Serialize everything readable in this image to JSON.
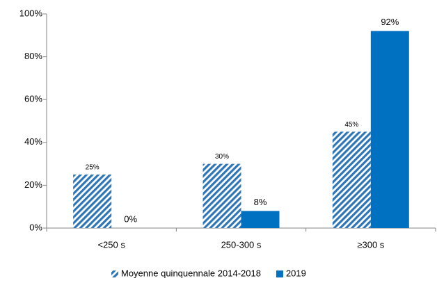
{
  "chart_data": {
    "type": "bar",
    "categories": [
      "<250 s",
      "250-300 s",
      "≥300 s"
    ],
    "series": [
      {
        "name": "Moyenne quinquennale 2014-2018",
        "color": "#2e75b6",
        "pattern": "hatch",
        "values": [
          25,
          30,
          45
        ],
        "value_labels": [
          "25%",
          "30%",
          "45%"
        ]
      },
      {
        "name": "2019",
        "color": "#0070c0",
        "values": [
          0,
          8,
          92
        ],
        "value_labels": [
          "0%",
          "8%",
          "92%"
        ]
      }
    ],
    "ylim": [
      0,
      100
    ],
    "yticks": [
      {
        "value": 0,
        "label": "0%"
      },
      {
        "value": 20,
        "label": "20%"
      },
      {
        "value": 40,
        "label": "40%"
      },
      {
        "value": 60,
        "label": "60%"
      },
      {
        "value": 80,
        "label": "80%"
      },
      {
        "value": 100,
        "label": "100%"
      }
    ],
    "legend": "bottom"
  }
}
